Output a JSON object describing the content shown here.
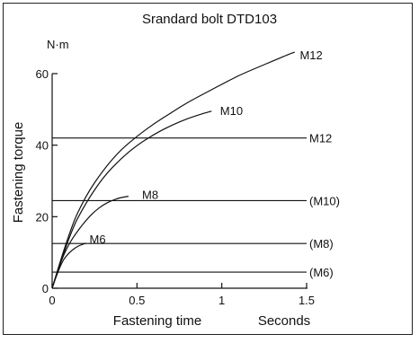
{
  "chart_data": {
    "type": "line",
    "title": "Srandard bolt DTD103",
    "xlabel": "Fastening time",
    "x_unit_label": "Seconds",
    "ylabel": "Fastening torque",
    "y_unit_label": "N·m",
    "xlim": [
      0,
      1.5
    ],
    "ylim": [
      0,
      65
    ],
    "x_ticks": [
      0,
      0.5,
      1,
      1.5
    ],
    "x_tick_labels": [
      "0",
      "0.5",
      "1",
      "1.5"
    ],
    "y_ticks": [
      0,
      20,
      40,
      60
    ],
    "y_tick_labels": [
      "0",
      "20",
      "40",
      "60"
    ],
    "grid": false,
    "line_color": "#111111",
    "series": [
      {
        "name": "M12",
        "x": [
          0,
          0.1,
          0.2,
          0.3,
          0.4,
          0.5,
          0.6,
          0.7,
          0.8,
          0.9,
          1.0,
          1.1,
          1.2,
          1.3,
          1.4,
          1.43
        ],
        "y": [
          0,
          16,
          26,
          33,
          38.5,
          42.5,
          46,
          49,
          52,
          54.5,
          57,
          59.5,
          61.5,
          63.5,
          65.5,
          66
        ]
      },
      {
        "name": "M10",
        "x": [
          0,
          0.1,
          0.2,
          0.3,
          0.4,
          0.5,
          0.6,
          0.7,
          0.8,
          0.9,
          0.94
        ],
        "y": [
          0,
          15,
          24,
          31,
          36,
          40,
          43,
          45.5,
          47.5,
          49,
          49.5
        ]
      },
      {
        "name": "M8",
        "x": [
          0,
          0.05,
          0.1,
          0.15,
          0.2,
          0.25,
          0.3,
          0.35,
          0.4,
          0.45
        ],
        "y": [
          0,
          7.5,
          12.5,
          16,
          19,
          21.5,
          23.3,
          24.5,
          25.3,
          25.7
        ]
      },
      {
        "name": "M6",
        "x": [
          0,
          0.05,
          0.1,
          0.15,
          0.2
        ],
        "y": [
          0,
          7,
          10,
          11.8,
          12.6
        ]
      }
    ],
    "reference_lines": [
      {
        "label": "M12",
        "y": 42
      },
      {
        "label": "(M10)",
        "y": 24.5
      },
      {
        "label": "(M8)",
        "y": 12.5
      },
      {
        "label": "(M6)",
        "y": 4.5
      }
    ],
    "curve_labels": [
      {
        "label": "M12",
        "x": 1.46,
        "y": 65
      },
      {
        "label": "M10",
        "x": 0.99,
        "y": 49.5
      },
      {
        "label": "M8",
        "x": 0.53,
        "y": 26
      },
      {
        "label": "M6",
        "x": 0.22,
        "y": 13.5
      }
    ]
  }
}
